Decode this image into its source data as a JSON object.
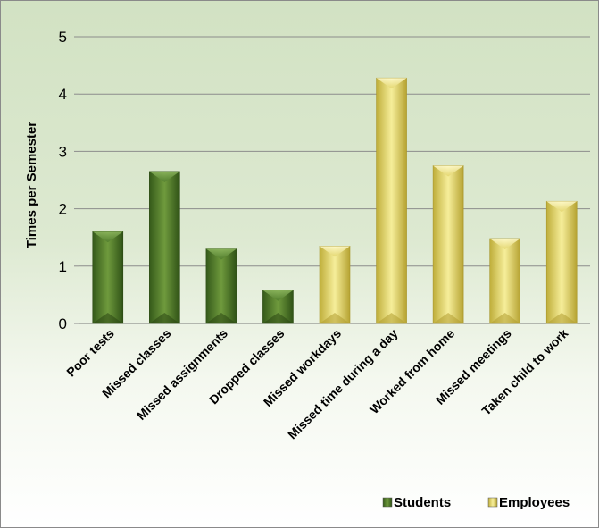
{
  "chart_data": {
    "type": "bar",
    "title": "",
    "xlabel": "",
    "ylabel": "Times per Semester",
    "ylim": [
      0,
      5
    ],
    "yticks": [
      "0",
      "1",
      "2",
      "3",
      "4",
      "5"
    ],
    "grid": true,
    "legend_position": "bottom-right",
    "categories": [
      "Poor tests",
      "Missed classes",
      "Missed assignments",
      "Dropped classes",
      "Missed workdays",
      "Missed time during a day",
      "Worked from home",
      "Missed meetings",
      "Taken child to work"
    ],
    "series": [
      {
        "name": "Students",
        "color": "#4e7a2b",
        "values": [
          1.6,
          2.65,
          1.3,
          0.58,
          null,
          null,
          null,
          null,
          null
        ]
      },
      {
        "name": "Employees",
        "color": "#e2d46a",
        "values": [
          null,
          null,
          null,
          null,
          1.35,
          4.28,
          2.75,
          1.48,
          2.13
        ]
      }
    ]
  }
}
